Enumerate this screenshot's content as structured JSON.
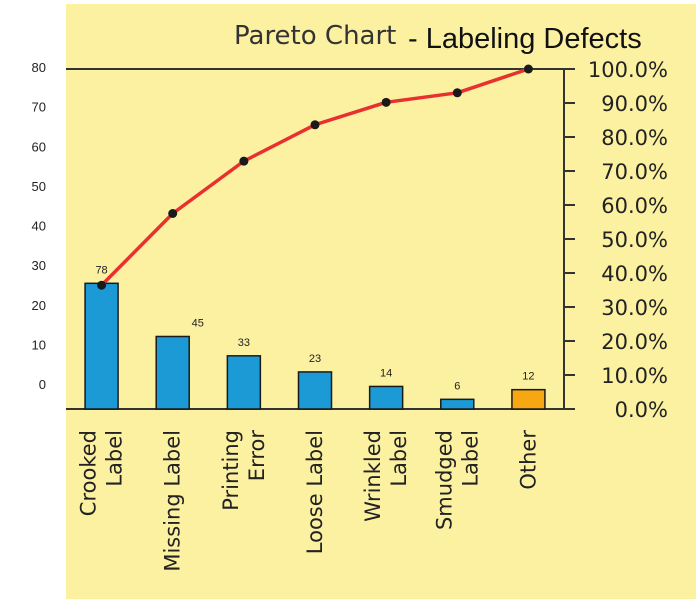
{
  "chart_data": {
    "type": "bar",
    "title_part1": "Pareto Chart",
    "title_part2": "- Labeling Defects",
    "categories": [
      [
        "Crooked",
        "Label"
      ],
      [
        "Missing Label"
      ],
      [
        "Printing",
        "Error"
      ],
      [
        "Loose Label"
      ],
      [
        "Wrinkled",
        "Label"
      ],
      [
        "Smudged",
        "Label"
      ],
      [
        "Other"
      ]
    ],
    "values": [
      78,
      45,
      33,
      23,
      14,
      6,
      12
    ],
    "data_labels": [
      "78",
      "45",
      "33",
      "23",
      "14",
      "6",
      "12"
    ],
    "cumulative_percent": [
      36.4,
      57.5,
      72.9,
      83.6,
      90.2,
      93.0,
      100.0
    ],
    "left_axis_ticks": [
      "80",
      "70",
      "60",
      "50",
      "40",
      "30",
      "20",
      "10",
      "0"
    ],
    "right_axis_ticks": [
      "100.0%",
      "90.0%",
      "80.0%",
      "70.0%",
      "60.0%",
      "50.0%",
      "40.0%",
      "30.0%",
      "20.0%",
      "10.0%",
      "0.0%"
    ],
    "right_ylim": [
      0,
      100
    ],
    "grid": false,
    "colors": {
      "background": "#fbf1a1",
      "bar": "#1b9ad6",
      "bar_highlight": "#f7a712",
      "bar_edge": "#1a1a1a",
      "line": "#e8302f",
      "marker": "#1a1a1a",
      "axis": "#333333"
    }
  }
}
